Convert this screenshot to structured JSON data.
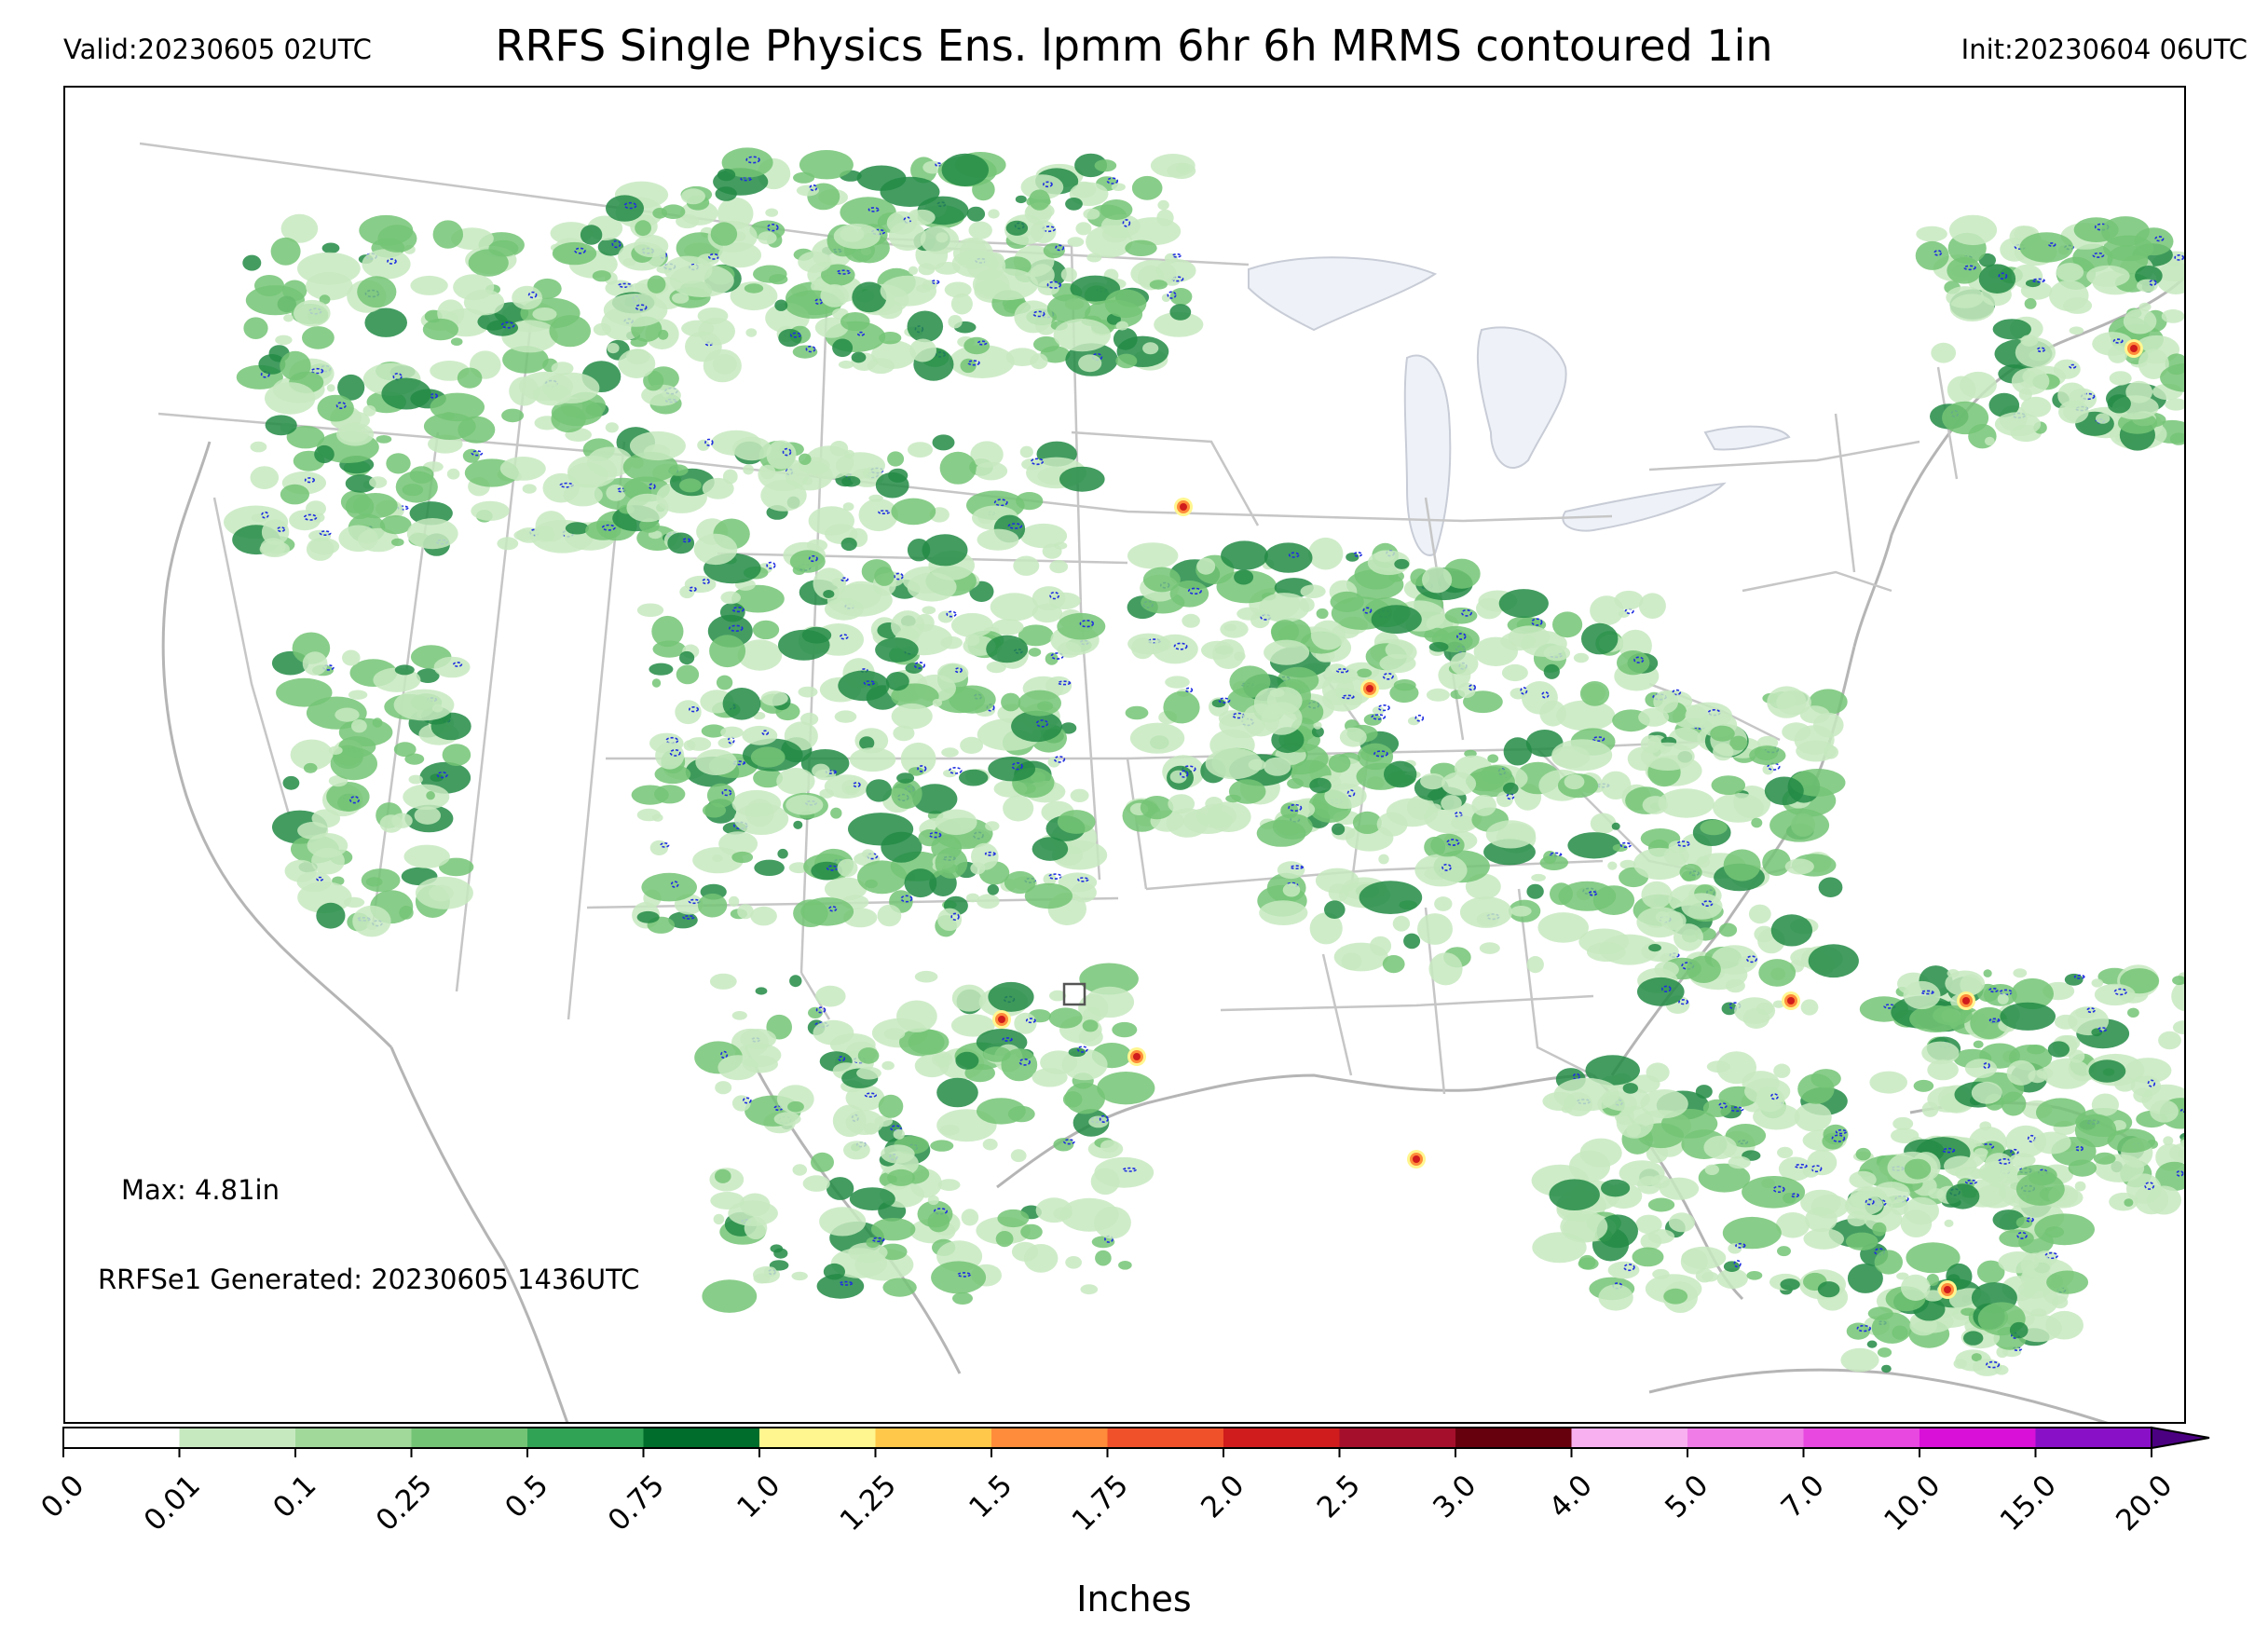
{
  "header": {
    "valid": "Valid:20230605 02UTC",
    "title": "RRFS Single Physics Ens. lpmm 6hr 6h MRMS contoured 1in",
    "init": "Init:20230604 06UTC"
  },
  "map": {
    "max_note": "Max: 4.81in",
    "generated_note": "RRFSe1 Generated: 20230605 1436UTC",
    "colors": {
      "state_lines": "#bdbdbd",
      "lakes": "#eef2f8",
      "mrms_contour": "#1f2ee0",
      "light_green": "#c7e9c0",
      "mid_green": "#74c476",
      "dark_green": "#238b45"
    }
  },
  "colorbar": {
    "label": "Inches",
    "ticks": [
      "0.0",
      "0.01",
      "0.1",
      "0.25",
      "0.5",
      "0.75",
      "1.0",
      "1.25",
      "1.5",
      "1.75",
      "2.0",
      "2.5",
      "3.0",
      "4.0",
      "5.0",
      "7.0",
      "10.0",
      "15.0",
      "20.0"
    ],
    "colors": [
      "#ffffff",
      "#c7e9c0",
      "#a1d99b",
      "#74c476",
      "#31a354",
      "#006d2c",
      "#fff68f",
      "#ffc84a",
      "#ff8c3a",
      "#f0502a",
      "#d01c1c",
      "#a50f2b",
      "#67000d",
      "#f8b0f0",
      "#f07ce8",
      "#e848e0",
      "#d810d8",
      "#8a10c8"
    ],
    "extend_color": "#4b0082"
  }
}
